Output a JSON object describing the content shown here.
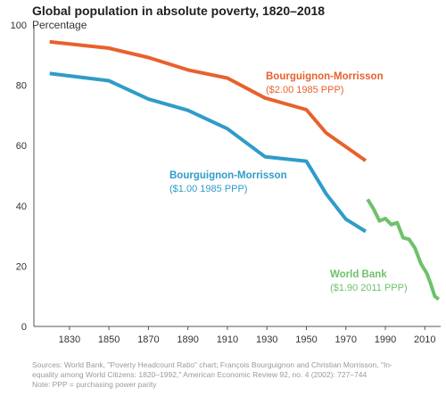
{
  "header": {
    "title": "Global population in absolute poverty, 1820–2018",
    "subtitle": "Percentage"
  },
  "source": {
    "line1": "Sources: World Bank, \"Poverty Headcount Ratio\" chart; François Bourguignon and Christian Morrisson, \"In-",
    "line2": "equality among World Citizens: 1820–1992,\" American Economic Review 92, no. 4 (2002): 727–744",
    "line3": "Note: PPP = purchasing power parity"
  },
  "colors": {
    "orange": "#e8612c",
    "blue": "#2f9cc9",
    "green": "#6fc16a",
    "axis": "#555555"
  },
  "chart_data": {
    "type": "line",
    "title": "Global population in absolute poverty, 1820–2018",
    "ylabel": "Percentage",
    "xlim": [
      1812,
      2018
    ],
    "ylim": [
      0,
      100
    ],
    "x_ticks": [
      1830,
      1850,
      1870,
      1890,
      1910,
      1930,
      1950,
      1970,
      1990,
      2010
    ],
    "y_ticks": [
      0,
      20,
      40,
      60,
      80,
      100
    ],
    "series": [
      {
        "name": "Bourguignon-Morrisson",
        "note": "($2.00 1985 PPP)",
        "color": "#e8612c",
        "points": [
          [
            1820,
            94.4
          ],
          [
            1850,
            92.3
          ],
          [
            1870,
            89.2
          ],
          [
            1890,
            85.1
          ],
          [
            1910,
            82.4
          ],
          [
            1929,
            75.8
          ],
          [
            1950,
            71.9
          ],
          [
            1960,
            64.2
          ],
          [
            1980,
            55.0
          ]
        ]
      },
      {
        "name": "Bourguignon-Morrisson",
        "note": "($1.00 1985 PPP)",
        "color": "#2f9cc9",
        "points": [
          [
            1820,
            83.9
          ],
          [
            1850,
            81.5
          ],
          [
            1870,
            75.4
          ],
          [
            1890,
            71.7
          ],
          [
            1910,
            65.6
          ],
          [
            1929,
            56.3
          ],
          [
            1950,
            54.8
          ],
          [
            1960,
            44.0
          ],
          [
            1970,
            35.6
          ],
          [
            1980,
            31.5
          ]
        ]
      },
      {
        "name": "World Bank",
        "note": "($1.90 2011 PPP)",
        "color": "#6fc16a",
        "points": [
          [
            1981,
            42.2
          ],
          [
            1984,
            39.0
          ],
          [
            1987,
            35.0
          ],
          [
            1990,
            35.8
          ],
          [
            1993,
            33.8
          ],
          [
            1996,
            34.4
          ],
          [
            1999,
            29.4
          ],
          [
            2002,
            28.9
          ],
          [
            2005,
            26.0
          ],
          [
            2008,
            20.8
          ],
          [
            2011,
            17.6
          ],
          [
            2013,
            14.1
          ],
          [
            2015,
            10.0
          ],
          [
            2017,
            9.0
          ]
        ]
      }
    ]
  }
}
